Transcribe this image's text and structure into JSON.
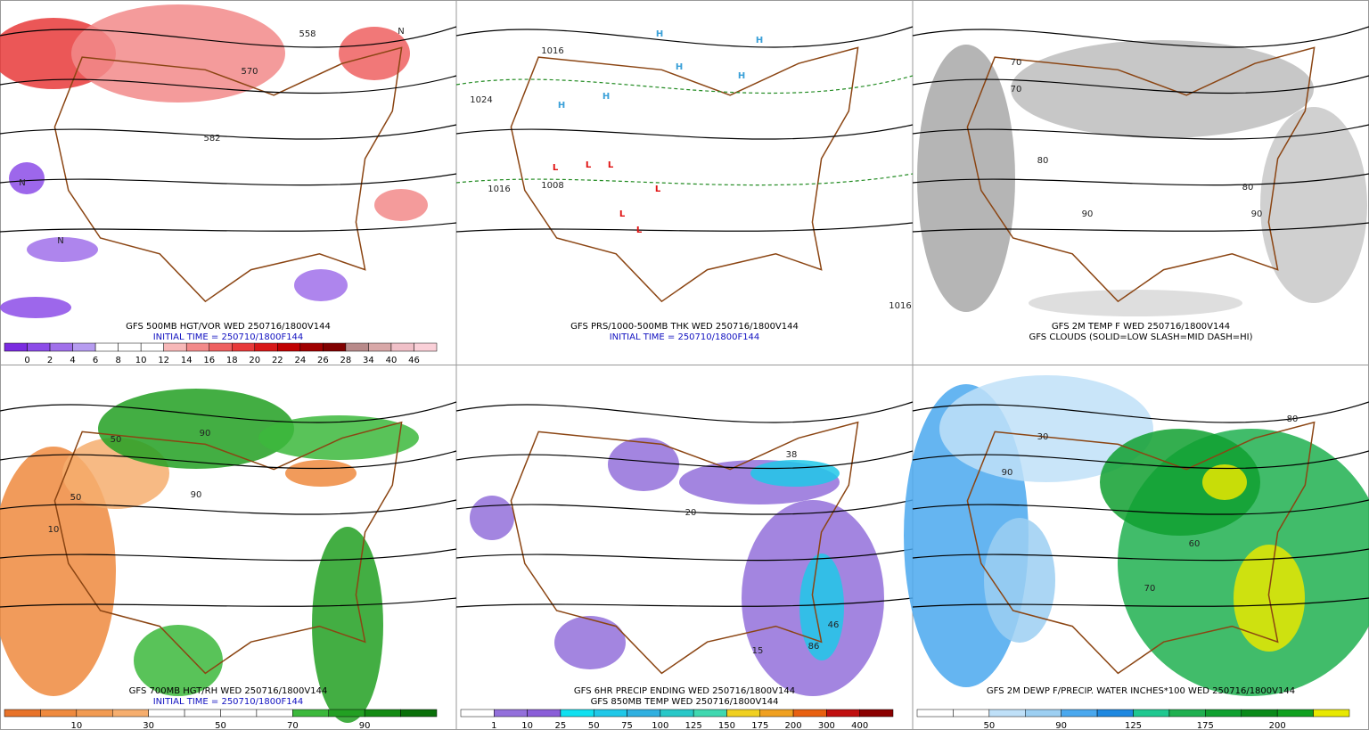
{
  "panels": [
    {
      "captions": [
        "GFS 500MB HGT/VOR WED 250716/1800V144",
        "INITIAL TIME = 250710/1800F144"
      ],
      "colorbar": {
        "labels": [
          "0",
          "2",
          "4",
          "6",
          "8",
          "10",
          "12",
          "14",
          "16",
          "18",
          "20",
          "22",
          "24",
          "26",
          "28",
          "34",
          "40",
          "46"
        ],
        "colors": [
          "#7a2be0",
          "#8c4ce8",
          "#a070ea",
          "#b69cf0",
          "#ffffff",
          "#ffffff",
          "#ffffff",
          "#f7b8b8",
          "#f28a8a",
          "#ee6060",
          "#e83a3a",
          "#d81818",
          "#c00000",
          "#a00000",
          "#800000",
          "#b88a8a",
          "#d8a8a8",
          "#f0c0c8",
          "#fad0d8"
        ]
      },
      "map_labels": [
        "558",
        "570",
        "582",
        "N",
        "N",
        "N"
      ]
    },
    {
      "captions": [
        "GFS PRS/1000-500MB THK WED 250716/1800V144",
        "INITIAL TIME = 250710/1800F144"
      ],
      "map_labels": [
        "H",
        "H",
        "H",
        "H",
        "H",
        "H",
        "L",
        "L",
        "L",
        "L",
        "L",
        "L",
        "1016",
        "1024",
        "1008",
        "1016",
        "1016"
      ]
    },
    {
      "captions": [
        "GFS 2M TEMP F WED 250716/1800V144",
        "GFS CLOUDS (SOLID=LOW SLASH=MID DASH=HI)"
      ],
      "map_labels": [
        "70",
        "80",
        "90",
        "80",
        "90",
        "70"
      ]
    },
    {
      "captions": [
        "GFS 700MB HGT/RH WED 250716/1800V144",
        "INITIAL TIME = 250710/1800F144"
      ],
      "colorbar": {
        "labels": [
          "10",
          "30",
          "50",
          "70",
          "90"
        ],
        "colors": [
          "#e8732a",
          "#ef8a3e",
          "#f29b52",
          "#f6ae6e",
          "#ffffff",
          "#ffffff",
          "#ffffff",
          "#ffffff",
          "#3cb83c",
          "#22a022",
          "#138a13",
          "#0a700a"
        ]
      },
      "map_labels": [
        "50",
        "90",
        "50",
        "90",
        "10"
      ]
    },
    {
      "captions": [
        "GFS 6HR PRECIP ENDING WED 250716/1800V144",
        "GFS 850MB TEMP WED 250716/1800V144"
      ],
      "colorbar": {
        "labels": [
          "1",
          "10",
          "25",
          "50",
          "75",
          "100",
          "125",
          "150",
          "175",
          "200",
          "300",
          "400"
        ],
        "colors": [
          "#ffffff",
          "#9370db",
          "#8a5ed8",
          "#10e0f0",
          "#20c8e8",
          "#30b0e0",
          "#28c8c8",
          "#40d8b0",
          "#f0d020",
          "#f0a020",
          "#e86010",
          "#c01010",
          "#8b0000"
        ]
      },
      "map_labels": [
        "38",
        "20",
        "86",
        "46",
        "15"
      ]
    },
    {
      "captions": [
        "GFS 2M DEWP F/PRECIP. WATER INCHES*100 WED 250716/1800V144"
      ],
      "colorbar": {
        "labels": [
          "50",
          "90",
          "125",
          "175",
          "200"
        ],
        "colors": [
          "#ffffff",
          "#ffffff",
          "#bfe0f8",
          "#9ccff2",
          "#4aa8ee",
          "#1e88e0",
          "#20c890",
          "#20b050",
          "#10a030",
          "#0a8a1a",
          "#10a020",
          "#e8e800"
        ]
      },
      "map_labels": [
        "30",
        "90",
        "60",
        "70",
        "80"
      ]
    }
  ]
}
